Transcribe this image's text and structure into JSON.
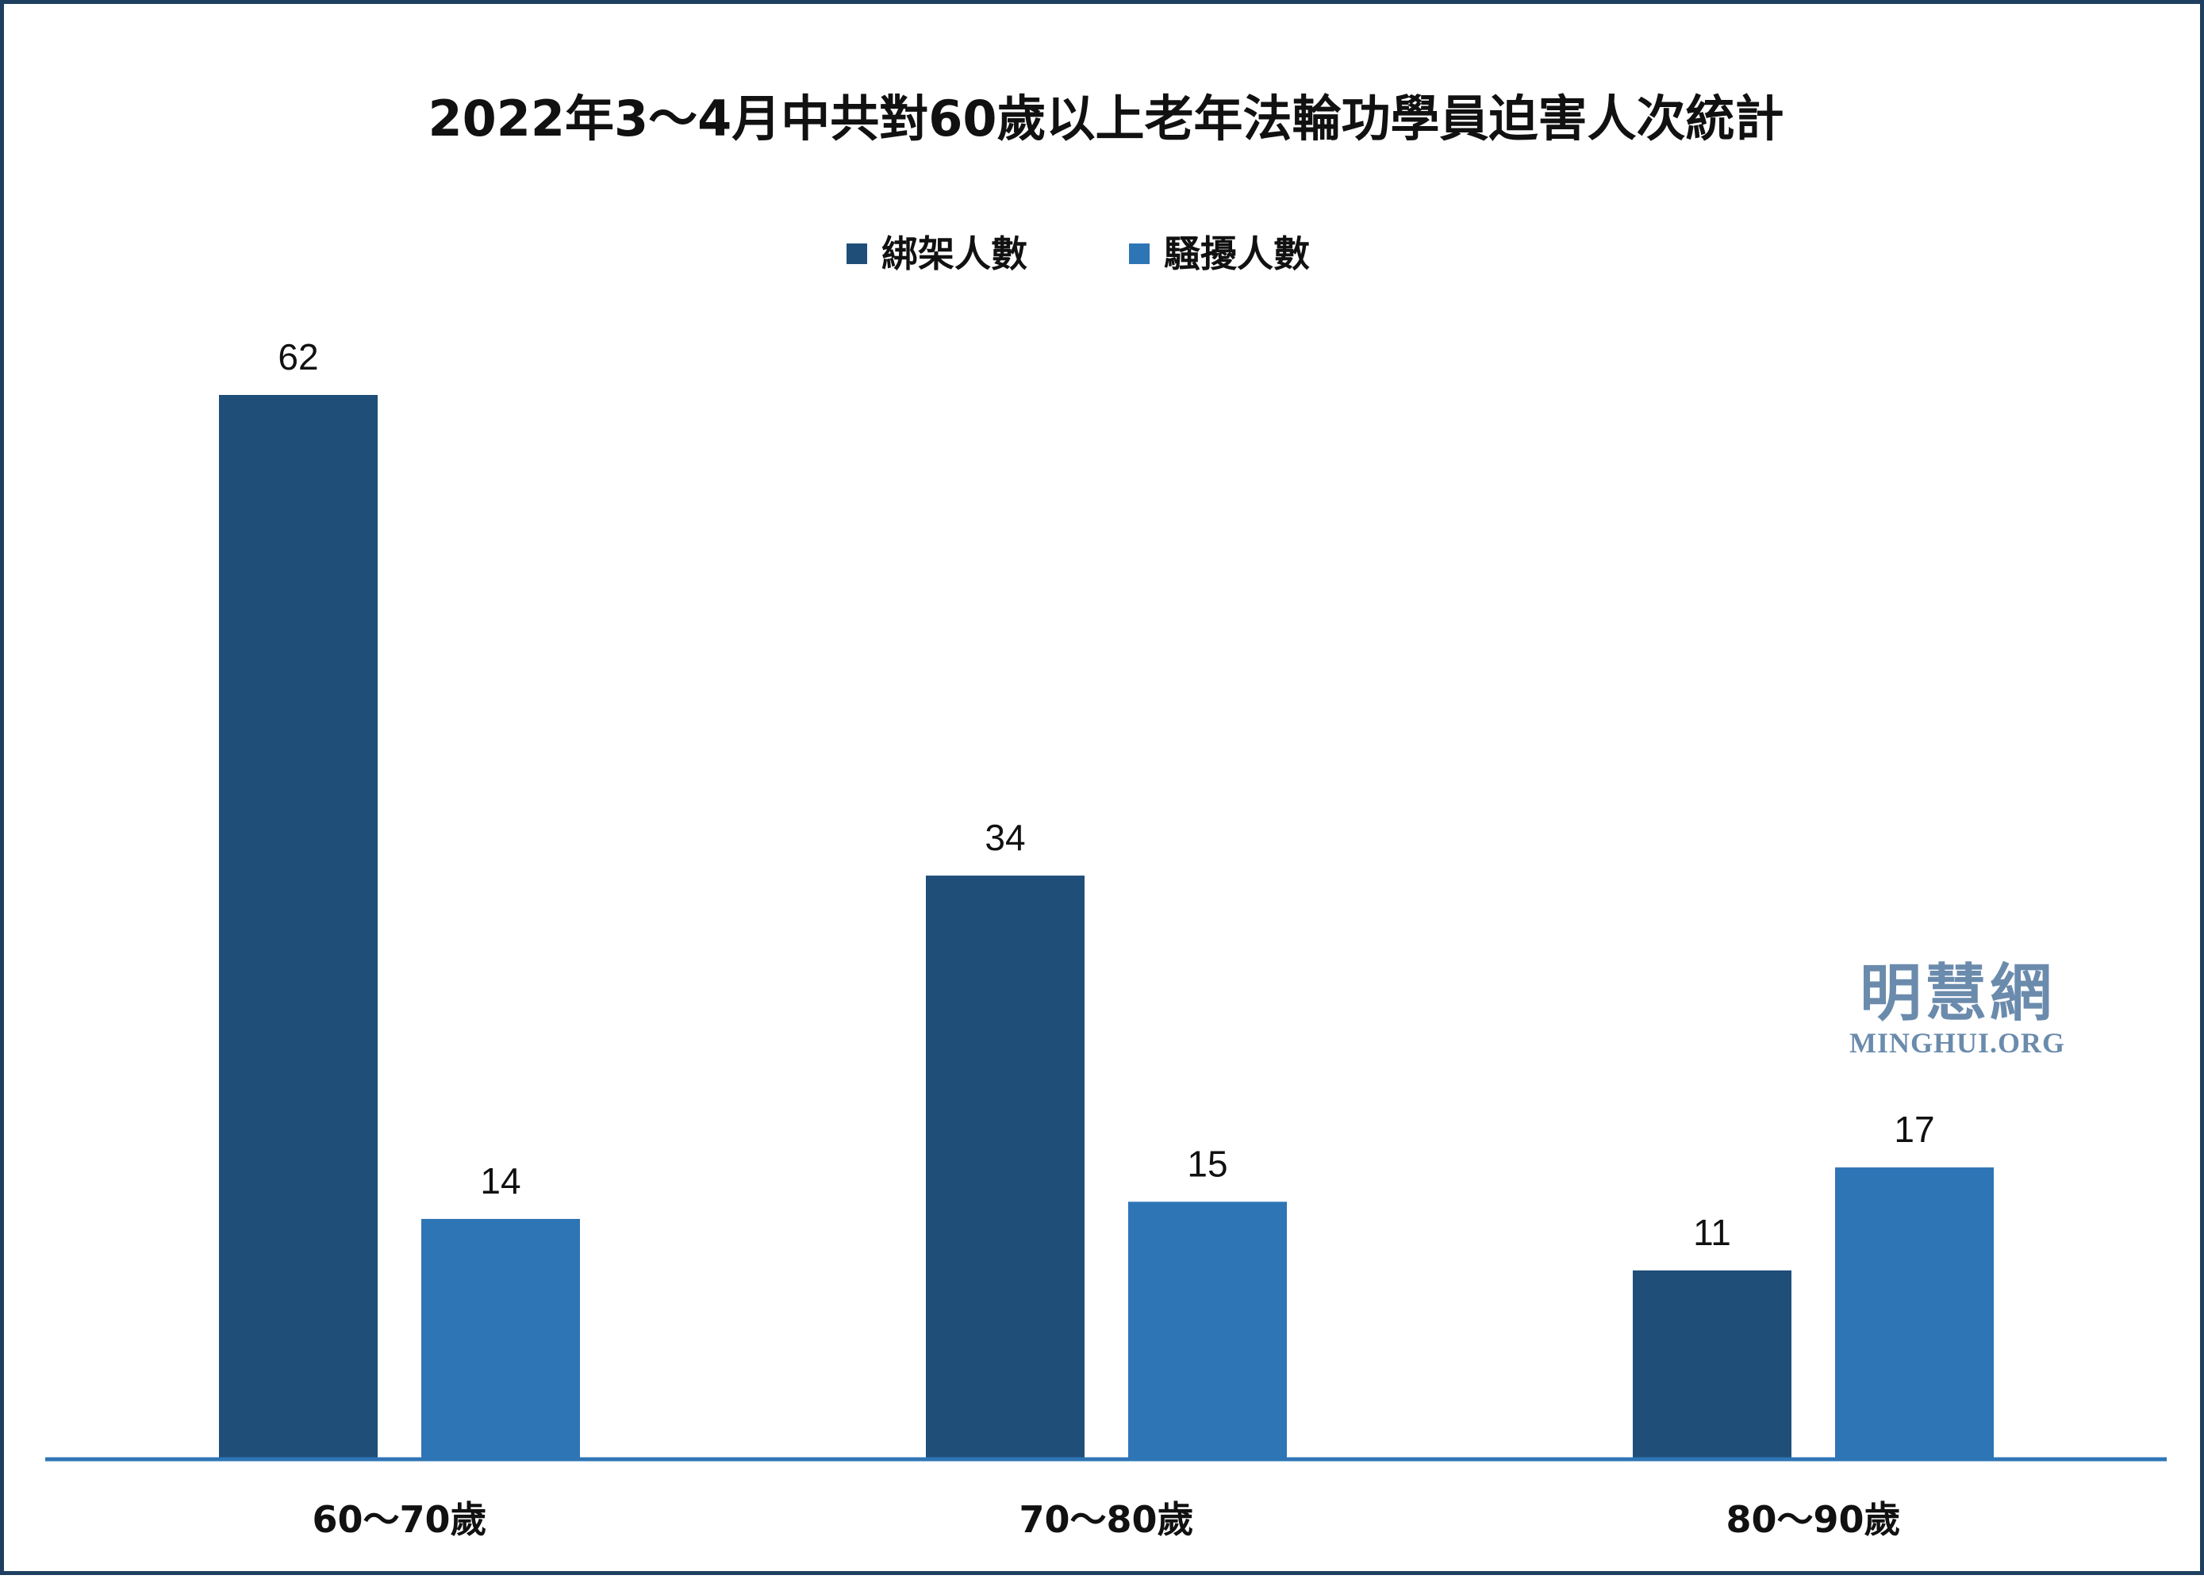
{
  "chart_data": {
    "type": "bar",
    "title": "2022年3～4月中共對60歲以上老年法輪功學員迫害人次統計",
    "xlabel": "",
    "ylabel": "",
    "categories": [
      "60～70歲",
      "70～80歲",
      "80～90歲"
    ],
    "series": [
      {
        "name": "綁架人數",
        "values": [
          62,
          34,
          11
        ],
        "color": "#1f4e79"
      },
      {
        "name": "騷擾人數",
        "values": [
          14,
          15,
          17
        ],
        "color": "#2e75b6"
      }
    ],
    "ylim": [
      0,
      62
    ],
    "grid": false,
    "legend_position": "top-center",
    "axis_color": "#2e75b6"
  },
  "watermark": {
    "name": "明慧網",
    "site": "MINGHUI.ORG"
  }
}
